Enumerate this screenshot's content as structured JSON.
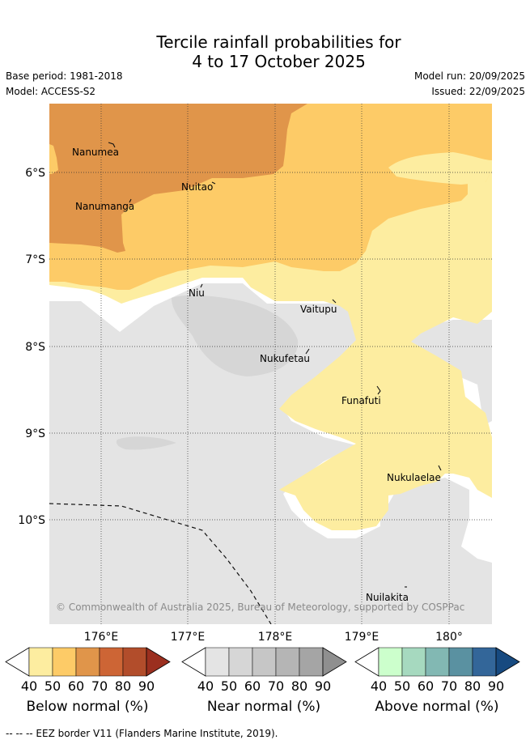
{
  "header": {
    "title_line1": "Tercile rainfall probabilities for",
    "title_line2": "4 to 17 October 2025",
    "base_period": "Base period: 1981-2018",
    "model": "Model: ACCESS-S2",
    "model_run": "Model run: 20/09/2025",
    "issued": "Issued: 22/09/2025"
  },
  "map": {
    "lat_labels": [
      "6°S",
      "7°S",
      "8°S",
      "9°S",
      "10°S"
    ],
    "lon_labels": [
      "176°E",
      "177°E",
      "178°E",
      "179°E",
      "180°"
    ],
    "places": [
      "Nanumea",
      "Nuitao",
      "Nanumanga",
      "Niu",
      "Vaitupu",
      "Nukufetau",
      "Funafuti",
      "Nukulaelae",
      "Nuilakita"
    ],
    "copyright": "© Commonwealth of Australia 2025, Bureau of Meteorology, supported by COSPPac",
    "colors": {
      "below_60": "#e0954a",
      "below_50": "#fdcb67",
      "below_40": "#fdeda0",
      "near_40": "#e4e4e4",
      "near_50": "#d6d6d6"
    }
  },
  "colorbars": [
    {
      "label": "Below normal (%)",
      "ticks": [
        "40",
        "50",
        "60",
        "70",
        "80",
        "90"
      ],
      "colors": [
        "#fdeda0",
        "#fdcb67",
        "#e0954a",
        "#cd6535",
        "#b24d2b",
        "#9b2f1f"
      ]
    },
    {
      "label": "Near normal (%)",
      "ticks": [
        "40",
        "50",
        "60",
        "70",
        "80",
        "90"
      ],
      "colors": [
        "#e4e4e4",
        "#d6d6d6",
        "#c6c6c6",
        "#b5b5b5",
        "#a5a5a5",
        "#8f8f8f"
      ]
    },
    {
      "label": "Above normal (%)",
      "ticks": [
        "40",
        "50",
        "60",
        "70",
        "80",
        "90"
      ],
      "colors": [
        "#ccffcc",
        "#a6d9bf",
        "#82b8b3",
        "#5a91a1",
        "#336699",
        "#174a80"
      ]
    }
  ],
  "footer": {
    "legend": "--  --  -- EEZ border V11 (Flanders Marine Institute, 2019)."
  }
}
